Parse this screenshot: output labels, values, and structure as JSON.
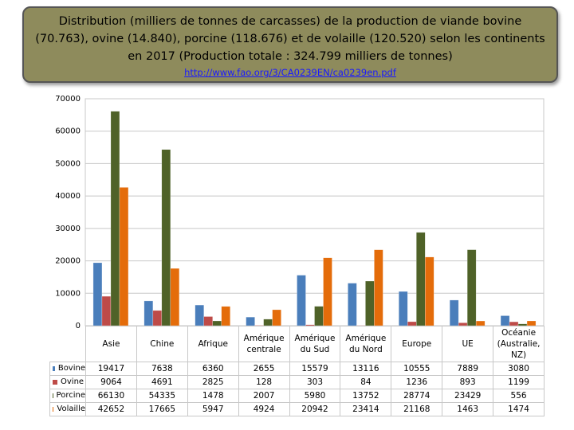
{
  "chart_data": {
    "type": "bar",
    "title": "Distribution (milliers de tonnes de carcasses)  de la production de viande bovine (70.763), ovine (14.840), porcine (118.676) et de volaille (120.520) selon les continents en 2017 (Production totale : 324.799 milliers de tonnes)",
    "source": "http://www.fao.org/3/CA0239EN/ca0239en.pdf",
    "categories": [
      "Asie",
      "Chine",
      "Afrique",
      "Amérique centrale",
      "Amérique du Sud",
      "Amérique du Nord",
      "Europe",
      "UE",
      "Océanie (Australie, NZ)"
    ],
    "series": [
      {
        "name": "Bovine",
        "color": "#4a7ebb",
        "values": [
          19417,
          7638,
          6360,
          2655,
          15579,
          13116,
          10555,
          7889,
          3080
        ]
      },
      {
        "name": "Ovine",
        "color": "#be4b48",
        "values": [
          9064,
          4691,
          2825,
          128,
          303,
          84,
          1236,
          893,
          1199
        ]
      },
      {
        "name": "Porcine",
        "color": "#4f6228",
        "values": [
          66130,
          54335,
          1478,
          2007,
          5980,
          13752,
          28774,
          23429,
          556
        ]
      },
      {
        "name": "Volaille",
        "color": "#e46c0a",
        "values": [
          42652,
          17665,
          5947,
          4924,
          20942,
          23414,
          21168,
          1463,
          1474
        ]
      }
    ],
    "ylim": [
      0,
      70000
    ],
    "yticks": [
      0,
      10000,
      20000,
      30000,
      40000,
      50000,
      60000,
      70000
    ],
    "grid": true
  }
}
